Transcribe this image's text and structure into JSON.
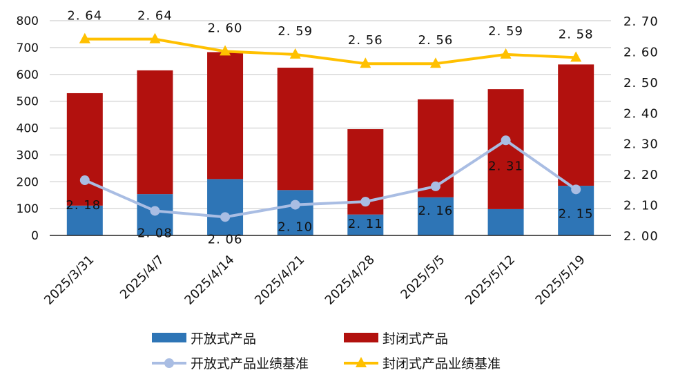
{
  "chart_data": {
    "type": "bar",
    "title": "",
    "categories": [
      "2025/3/31",
      "2025/4/7",
      "2025/4/14",
      "2025/4/21",
      "2025/4/28",
      "2025/5/5",
      "2025/5/12",
      "2025/5/19"
    ],
    "series": [
      {
        "name": "开放式产品",
        "type": "bar",
        "axis": "left",
        "stack": "s",
        "color": "#2E75B6",
        "values": [
          111,
          154,
          210,
          169,
          78,
          142,
          98,
          185
        ]
      },
      {
        "name": "封闭式产品",
        "type": "bar",
        "axis": "left",
        "stack": "s",
        "color": "#B2110E",
        "values": [
          419,
          461,
          473,
          456,
          318,
          365,
          447,
          452
        ]
      },
      {
        "name": "开放式产品业绩基准",
        "type": "line",
        "axis": "right",
        "marker": "circle",
        "color": "#A9BDE3",
        "values": [
          2.18,
          2.08,
          2.06,
          2.1,
          2.11,
          2.16,
          2.31,
          2.15
        ],
        "labels": [
          "2.18",
          "2.08",
          "2.06",
          "2.10",
          "2.11",
          "2.16",
          "2.31",
          "2.15"
        ]
      },
      {
        "name": "封闭式产品业绩基准",
        "type": "line",
        "axis": "right",
        "marker": "triangle",
        "color": "#FFC000",
        "values": [
          2.64,
          2.64,
          2.6,
          2.59,
          2.56,
          2.56,
          2.59,
          2.58
        ],
        "labels": [
          "2.64",
          "2.64",
          "2.60",
          "2.59",
          "2.56",
          "2.56",
          "2.59",
          "2.58"
        ]
      }
    ],
    "y_left": {
      "range": [
        0,
        800
      ],
      "ticks": [
        "0",
        "100",
        "200",
        "300",
        "400",
        "500",
        "600",
        "700",
        "800"
      ]
    },
    "y_right": {
      "range": [
        2.0,
        2.7
      ],
      "ticks": [
        "2.00",
        "2.10",
        "2.20",
        "2.30",
        "2.40",
        "2.50",
        "2.60",
        "2.70"
      ]
    },
    "grid": true,
    "legend": "bottom"
  }
}
